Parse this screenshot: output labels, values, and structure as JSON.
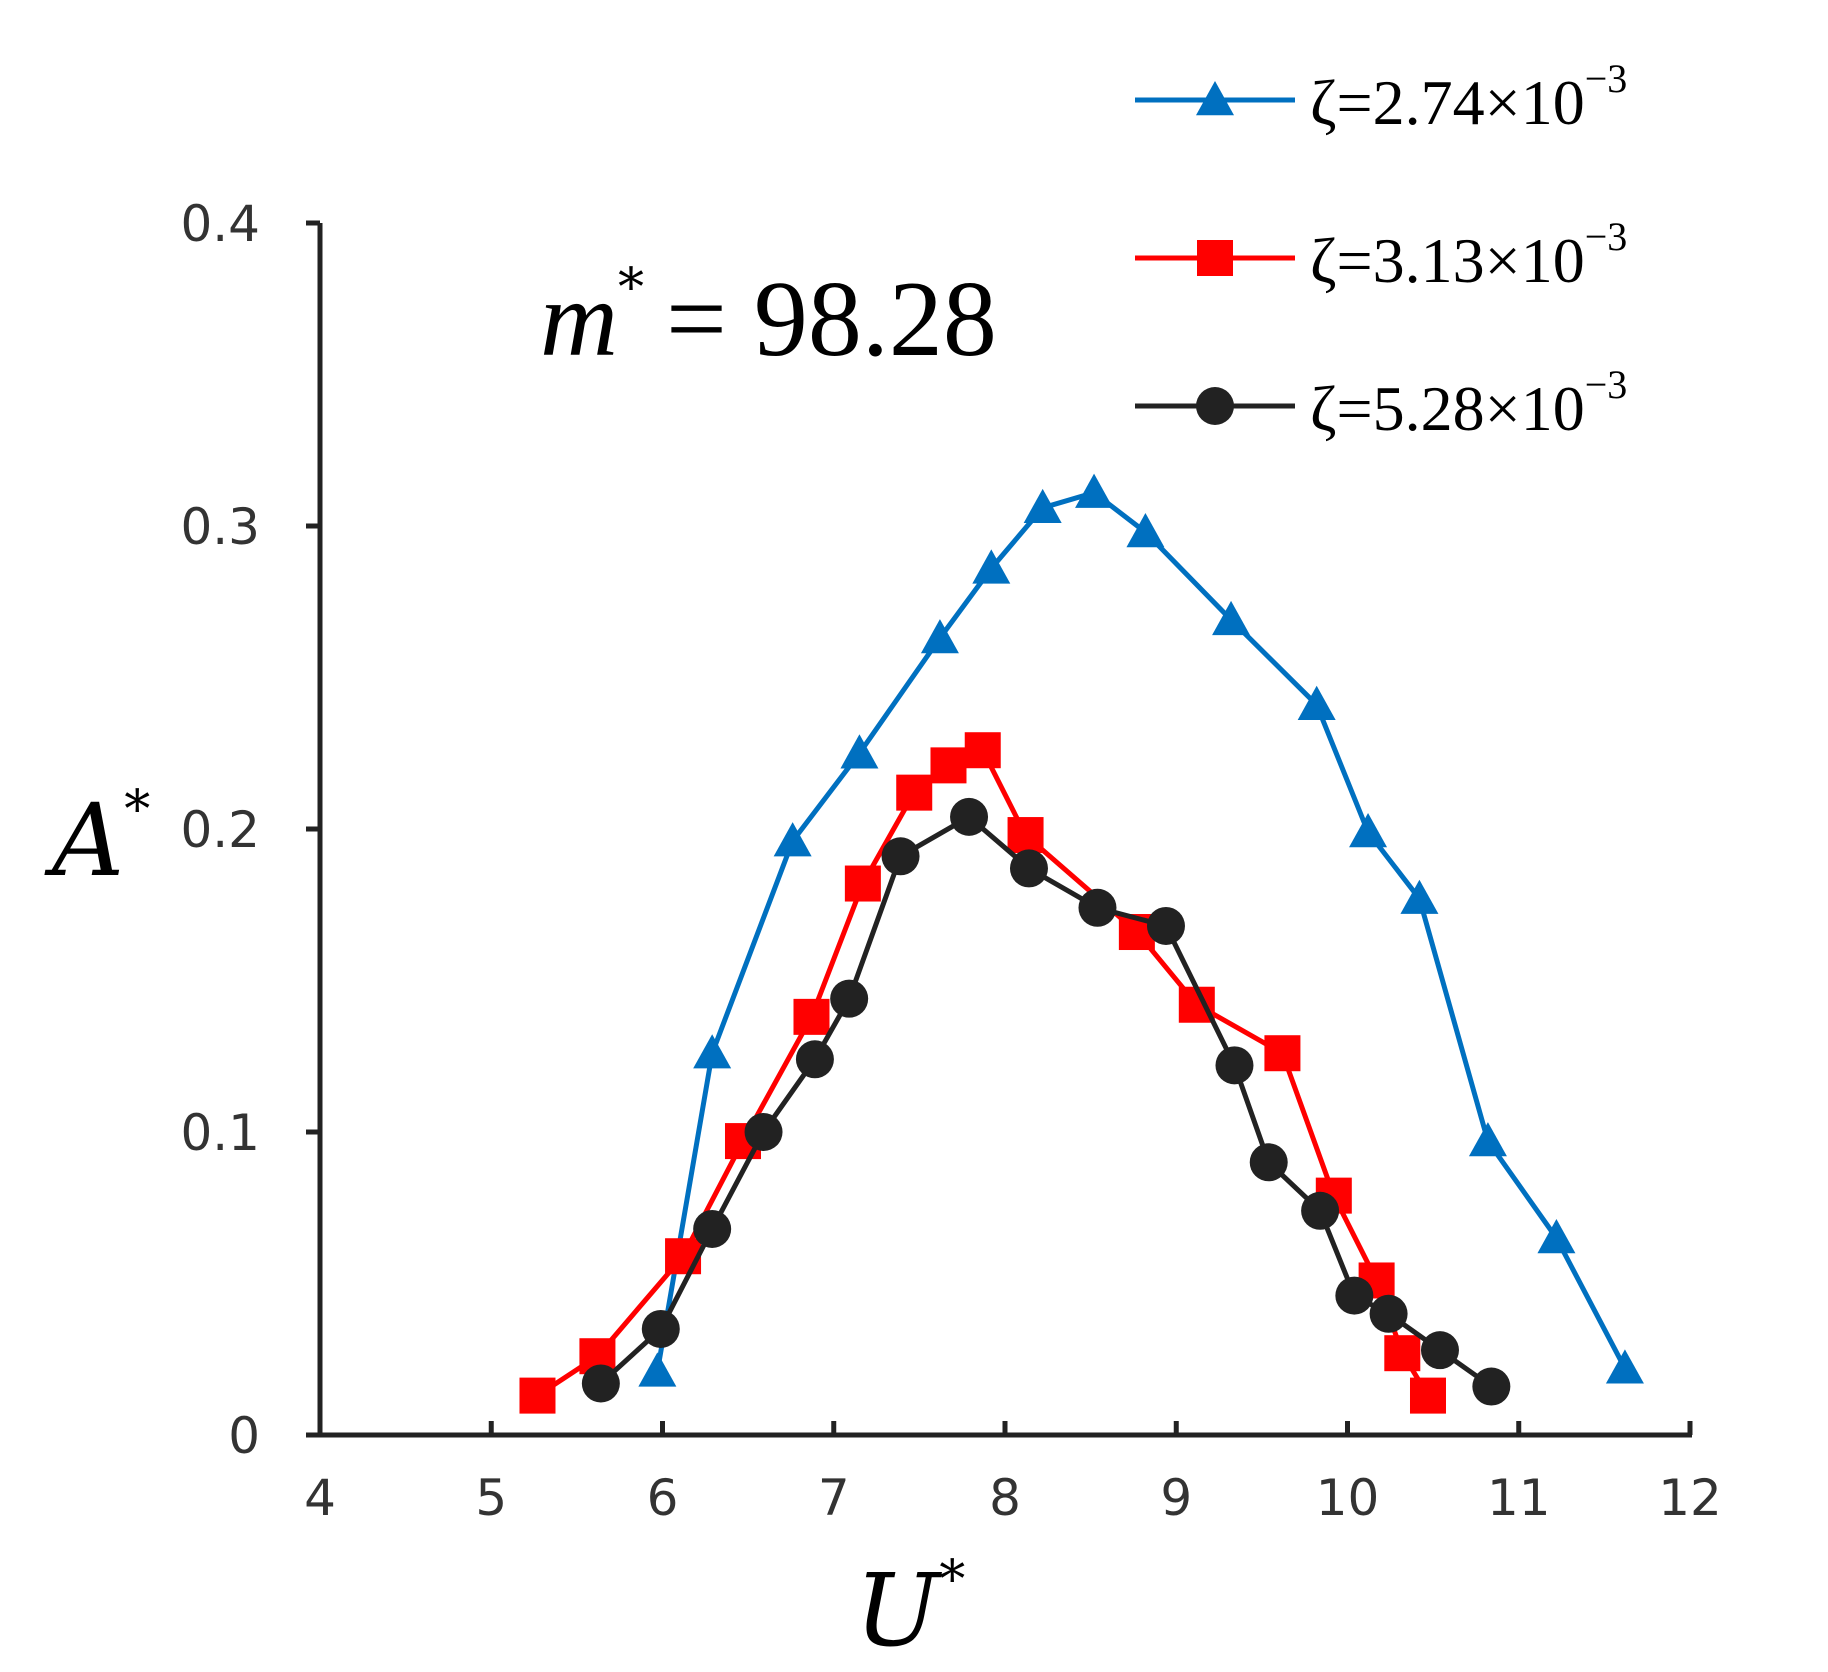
{
  "chart_data": {
    "type": "line",
    "annotation": {
      "symbol": "m",
      "sup": "*",
      "value": "= 98.28"
    },
    "xlabel": {
      "symbol": "U",
      "sup": "*"
    },
    "ylabel": {
      "symbol": "A",
      "sup": "*"
    },
    "xlim": [
      4,
      12
    ],
    "ylim": [
      0,
      0.4
    ],
    "xticks": [
      "4",
      "5",
      "6",
      "7",
      "8",
      "9",
      "10",
      "11",
      "12"
    ],
    "yticks": [
      "0",
      "0.1",
      "0.2",
      "0.3",
      "0.4"
    ],
    "legend_position": "top-right",
    "grid": false,
    "series": [
      {
        "name": "ζ=2.74×10",
        "name_sup": "−3",
        "color": "#0070C0",
        "marker": "triangle",
        "x": [
          5.97,
          6.29,
          6.76,
          7.15,
          7.62,
          7.92,
          8.22,
          8.52,
          8.82,
          9.32,
          9.82,
          10.12,
          10.42,
          10.82,
          11.22,
          11.62
        ],
        "y": [
          0.021,
          0.126,
          0.196,
          0.225,
          0.263,
          0.286,
          0.306,
          0.311,
          0.298,
          0.269,
          0.241,
          0.199,
          0.177,
          0.097,
          0.065,
          0.022
        ]
      },
      {
        "name": "ζ=3.13×10",
        "name_sup": "−3",
        "color": "#FF0000",
        "marker": "square",
        "x": [
          5.27,
          5.62,
          6.12,
          6.47,
          6.87,
          7.17,
          7.47,
          7.67,
          7.87,
          8.12,
          8.77,
          9.12,
          9.62,
          9.92,
          10.17,
          10.32,
          10.47
        ],
        "y": [
          0.013,
          0.026,
          0.059,
          0.097,
          0.138,
          0.182,
          0.212,
          0.221,
          0.226,
          0.198,
          0.166,
          0.142,
          0.126,
          0.079,
          0.051,
          0.027,
          0.013
        ]
      },
      {
        "name": "ζ=5.28×10",
        "name_sup": "−3",
        "color": "#222222",
        "marker": "circle",
        "x": [
          5.64,
          5.99,
          6.29,
          6.59,
          6.89,
          7.09,
          7.39,
          7.79,
          8.14,
          8.54,
          8.94,
          9.34,
          9.54,
          9.84,
          10.04,
          10.24,
          10.54,
          10.84
        ],
        "y": [
          0.017,
          0.035,
          0.068,
          0.1,
          0.124,
          0.144,
          0.191,
          0.204,
          0.187,
          0.174,
          0.168,
          0.122,
          0.09,
          0.074,
          0.046,
          0.04,
          0.028,
          0.016
        ]
      }
    ]
  }
}
